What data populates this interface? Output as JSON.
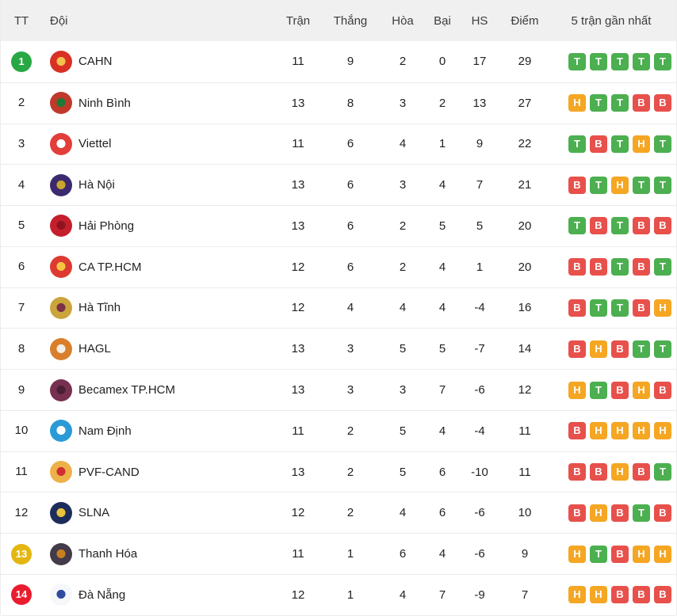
{
  "table": {
    "headers": {
      "tt": "TT",
      "team": "Đội",
      "played": "Trận",
      "won": "Thắng",
      "drawn": "Hòa",
      "lost": "Bại",
      "gd": "HS",
      "points": "Điểm",
      "form": "5 trận gần nhất"
    },
    "form_legend": {
      "T": "win",
      "H": "draw",
      "B": "loss"
    },
    "colors": {
      "form_win": "#4caf50",
      "form_draw": "#f5a623",
      "form_loss": "#e8504b",
      "pos_green": "#27a844",
      "pos_gold": "#e4b611",
      "pos_red": "#ea1c2d",
      "header_bg": "#f0f0f0",
      "row_border": "#ececec"
    },
    "rows": [
      {
        "pos": "1",
        "badge": "green",
        "name": "CAHN",
        "played": "11",
        "won": "9",
        "drawn": "2",
        "lost": "0",
        "gd": "17",
        "points": "29",
        "form": [
          "T",
          "T",
          "T",
          "T",
          "T"
        ],
        "logo": {
          "center": "#f2c14e",
          "body": "#d93025",
          "ring": "#f4e6d3"
        }
      },
      {
        "pos": "2",
        "badge": "none",
        "name": "Ninh Bình",
        "played": "13",
        "won": "8",
        "drawn": "3",
        "lost": "2",
        "gd": "13",
        "points": "27",
        "form": [
          "H",
          "T",
          "T",
          "B",
          "B"
        ],
        "logo": {
          "center": "#1e7a34",
          "body": "#c0392b",
          "ring": "#f3f3f3"
        }
      },
      {
        "pos": "3",
        "badge": "none",
        "name": "Viettel",
        "played": "11",
        "won": "6",
        "drawn": "4",
        "lost": "1",
        "gd": "9",
        "points": "22",
        "form": [
          "T",
          "B",
          "T",
          "H",
          "T"
        ],
        "logo": {
          "center": "#ffffff",
          "body": "#e23e3a",
          "ring": "#f0b9b4"
        }
      },
      {
        "pos": "4",
        "badge": "none",
        "name": "Hà Nội",
        "played": "13",
        "won": "6",
        "drawn": "3",
        "lost": "4",
        "gd": "7",
        "points": "21",
        "form": [
          "B",
          "T",
          "H",
          "T",
          "T"
        ],
        "logo": {
          "center": "#caa62f",
          "body": "#3c2a6e",
          "ring": "#8d6cb8"
        }
      },
      {
        "pos": "5",
        "badge": "none",
        "name": "Hải Phòng",
        "played": "13",
        "won": "6",
        "drawn": "2",
        "lost": "5",
        "gd": "5",
        "points": "20",
        "form": [
          "T",
          "B",
          "T",
          "B",
          "B"
        ],
        "logo": {
          "center": "#8e1320",
          "body": "#c51f2d",
          "ring": "#e8d9d9"
        }
      },
      {
        "pos": "6",
        "badge": "none",
        "name": "CA TP.HCM",
        "played": "12",
        "won": "6",
        "drawn": "2",
        "lost": "4",
        "gd": "1",
        "points": "20",
        "form": [
          "B",
          "B",
          "T",
          "B",
          "T"
        ],
        "logo": {
          "center": "#f5c542",
          "body": "#dd3a31",
          "ring": "#f6c9c4"
        }
      },
      {
        "pos": "7",
        "badge": "none",
        "name": "Hà Tĩnh",
        "played": "12",
        "won": "4",
        "drawn": "4",
        "lost": "4",
        "gd": "-4",
        "points": "16",
        "form": [
          "B",
          "T",
          "T",
          "B",
          "H"
        ],
        "logo": {
          "center": "#7b3146",
          "body": "#caa53c",
          "ring": "#e9d8a6"
        }
      },
      {
        "pos": "8",
        "badge": "none",
        "name": "HAGL",
        "played": "13",
        "won": "3",
        "drawn": "5",
        "lost": "5",
        "gd": "-7",
        "points": "14",
        "form": [
          "B",
          "H",
          "B",
          "T",
          "T"
        ],
        "logo": {
          "center": "#f3efe6",
          "body": "#d97f2c",
          "ring": "#efe0c8"
        }
      },
      {
        "pos": "9",
        "badge": "none",
        "name": "Becamex TP.HCM",
        "played": "13",
        "won": "3",
        "drawn": "3",
        "lost": "7",
        "gd": "-6",
        "points": "12",
        "form": [
          "H",
          "T",
          "B",
          "H",
          "B"
        ],
        "logo": {
          "center": "#4a1e33",
          "body": "#77304f",
          "ring": "#dfd5da"
        }
      },
      {
        "pos": "10",
        "badge": "none",
        "name": "Nam Định",
        "played": "11",
        "won": "2",
        "drawn": "5",
        "lost": "4",
        "gd": "-4",
        "points": "11",
        "form": [
          "B",
          "H",
          "H",
          "H",
          "H"
        ],
        "logo": {
          "center": "#ffffff",
          "body": "#2a9ad7",
          "ring": "#bfe1f6"
        }
      },
      {
        "pos": "11",
        "badge": "none",
        "name": "PVF-CAND",
        "played": "13",
        "won": "2",
        "drawn": "5",
        "lost": "6",
        "gd": "-10",
        "points": "11",
        "form": [
          "B",
          "B",
          "H",
          "B",
          "T"
        ],
        "logo": {
          "center": "#cf2e2e",
          "body": "#edb14a",
          "ring": "#f0c76f"
        }
      },
      {
        "pos": "12",
        "badge": "none",
        "name": "SLNA",
        "played": "12",
        "won": "2",
        "drawn": "4",
        "lost": "6",
        "gd": "-6",
        "points": "10",
        "form": [
          "B",
          "H",
          "B",
          "T",
          "B"
        ],
        "logo": {
          "center": "#e8c33c",
          "body": "#1d2d5a",
          "ring": "#d7dbe6"
        }
      },
      {
        "pos": "13",
        "badge": "gold",
        "name": "Thanh Hóa",
        "played": "11",
        "won": "1",
        "drawn": "6",
        "lost": "4",
        "gd": "-6",
        "points": "9",
        "form": [
          "H",
          "T",
          "B",
          "H",
          "H"
        ],
        "logo": {
          "center": "#c8801f",
          "body": "#433a4a",
          "ring": "#d99f1f"
        }
      },
      {
        "pos": "14",
        "badge": "red",
        "name": "Đà Nẵng",
        "played": "12",
        "won": "1",
        "drawn": "4",
        "lost": "7",
        "gd": "-9",
        "points": "7",
        "form": [
          "H",
          "H",
          "B",
          "B",
          "B"
        ],
        "logo": {
          "center": "#2f4b9e",
          "body": "#f5f7fa",
          "ring": "#b9c4e0"
        }
      }
    ]
  }
}
